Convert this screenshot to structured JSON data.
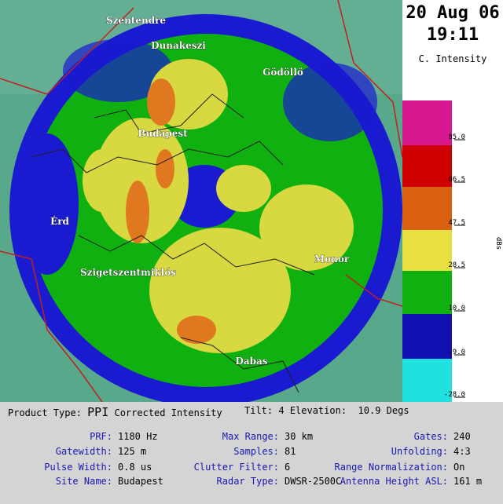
{
  "header": {
    "date": "20 Aug 06",
    "time": "19:11",
    "product": "C. Intensity"
  },
  "scale": {
    "unit": "dBs",
    "labels": [
      "85.0",
      "66.5",
      "47.5",
      "28.5",
      "10.0",
      "-9.0",
      "-28.0"
    ]
  },
  "places": [
    "Szentendre",
    "Dunakeszi",
    "Gödöllő",
    "Budapest",
    "Érd",
    "Szigetszentmiklós",
    "Monor",
    "Dabas"
  ],
  "info": {
    "product_type_label": "Product Type:",
    "product_type": "PPI",
    "product_name": "Corrected Intensity",
    "tilt": "Tilt: 4",
    "elevation_label": "Elevation:",
    "elevation": "10.9 Degs",
    "fields": [
      {
        "label": "PRF:",
        "value": "1180 Hz"
      },
      {
        "label": "Max Range:",
        "value": "30 km"
      },
      {
        "label": "Gates:",
        "value": "240"
      },
      {
        "label": "Gatewidth:",
        "value": "125 m"
      },
      {
        "label": "Samples:",
        "value": "81"
      },
      {
        "label": "Unfolding:",
        "value": "4:3"
      },
      {
        "label": "Pulse Width:",
        "value": "0.8 us"
      },
      {
        "label": "Clutter Filter:",
        "value": "6"
      },
      {
        "label": "Range Normalization:",
        "value": "On"
      },
      {
        "label": "Site Name:",
        "value": "Budapest"
      },
      {
        "label": "Radar Type:",
        "value": "DWSR-2500C"
      },
      {
        "label": "Antenna Height ASL:",
        "value": "161 m"
      }
    ]
  }
}
